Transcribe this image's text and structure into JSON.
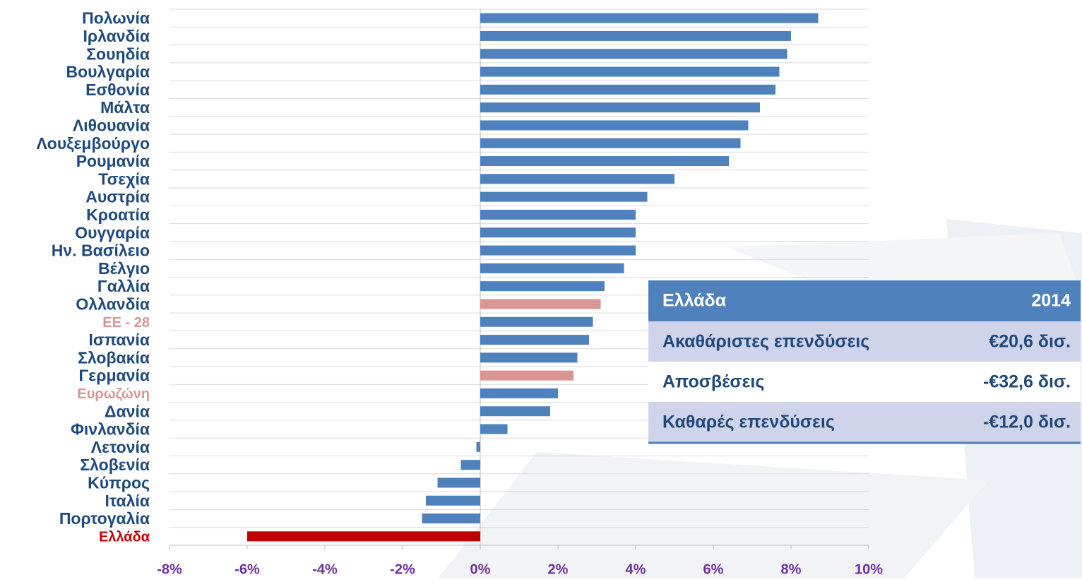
{
  "chart_data": {
    "type": "hbar",
    "categories": [
      "Πολωνία",
      "Ιρλανδία",
      "Σουηδία",
      "Βουλγαρία",
      "Εσθονία",
      "Μάλτα",
      "Λιθουανία",
      "Λουξεμβούργο",
      "Ρουμανία",
      "Τσεχία",
      "Αυστρία",
      "Κροατία",
      "Ουγγαρία",
      "Ην. Βασίλειο",
      "Βέλγιο",
      "Γαλλία",
      "Ολλανδία",
      "ΕΕ - 28",
      "Ισπανία",
      "Σλοβακία",
      "Γερμανία",
      "Ευρωζώνη",
      "Δανία",
      "Φινλανδία",
      "Λετονία",
      "Σλοβενία",
      "Κύπρος",
      "Ιταλία",
      "Πορτογαλία",
      "Ελλάδα"
    ],
    "values": [
      8.7,
      8.0,
      7.9,
      7.7,
      7.6,
      7.2,
      6.9,
      6.7,
      6.4,
      5.0,
      4.3,
      4.0,
      4.0,
      4.0,
      3.7,
      3.2,
      3.1,
      2.9,
      2.8,
      2.5,
      2.4,
      2.0,
      1.8,
      0.7,
      -0.1,
      -0.5,
      -1.1,
      -1.4,
      -1.5,
      -6.0
    ],
    "color": "#4f81bd",
    "bar_colors": {
      "16": "#d99694",
      "20": "#d99694",
      "29": "#c00000"
    },
    "label_color": "#1f497d",
    "label_colors": {
      "17": "#d99694",
      "21": "#d99694",
      "29": "#c00000"
    },
    "xlim": [
      -8,
      10
    ],
    "xticks": [
      {
        "value": -8,
        "label": "-8%"
      },
      {
        "value": -6,
        "label": "-6%"
      },
      {
        "value": -4,
        "label": "-4%"
      },
      {
        "value": -2,
        "label": "-2%"
      },
      {
        "value": 0,
        "label": "0%"
      },
      {
        "value": 2,
        "label": "2%"
      },
      {
        "value": 4,
        "label": "4%"
      },
      {
        "value": 6,
        "label": "6%"
      },
      {
        "value": 8,
        "label": "8%"
      },
      {
        "value": 10,
        "label": "10%"
      }
    ]
  },
  "table": {
    "header": [
      "Ελλάδα",
      "2014"
    ],
    "rows": [
      [
        "Ακαθάριστες επενδύσεις",
        "€20,6 δισ."
      ],
      [
        "Αποσβέσεις",
        "-€32,6 δισ."
      ],
      [
        "Καθαρές επενδύσεις",
        "-€12,0 δισ."
      ]
    ]
  }
}
